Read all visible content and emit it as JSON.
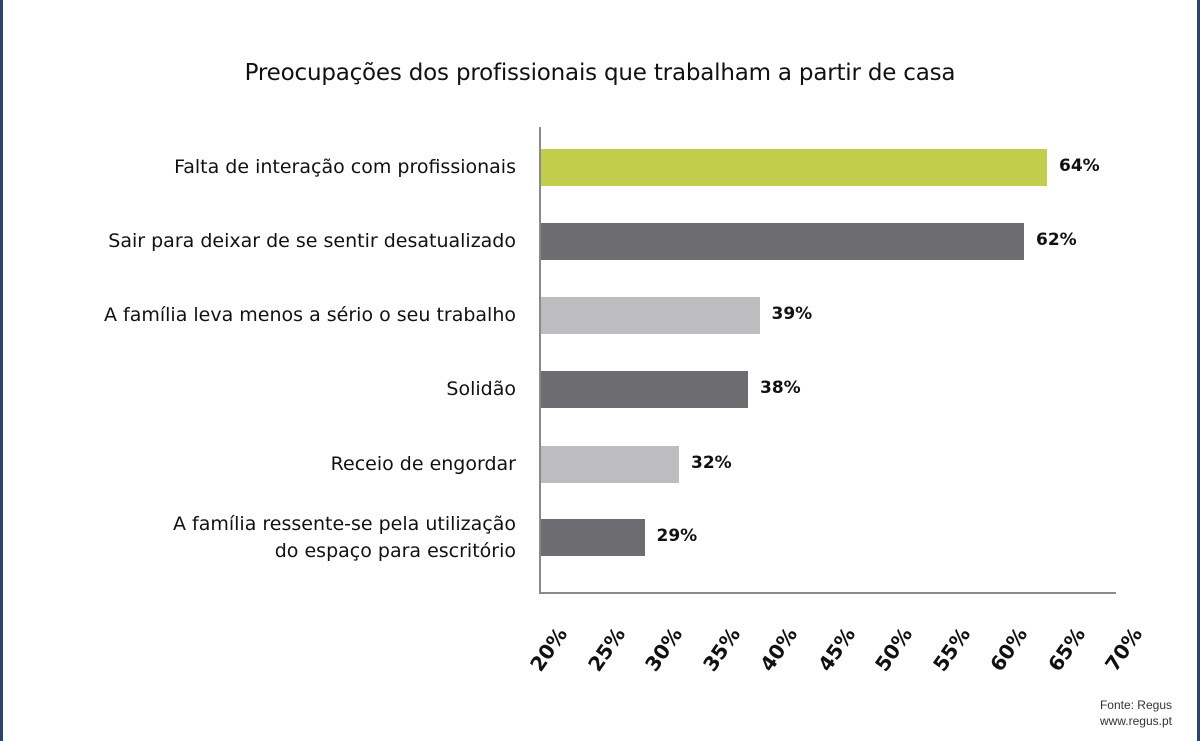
{
  "chart_data": {
    "type": "bar",
    "orientation": "horizontal",
    "title": "Preocupações dos profissionais que trabalham a partir de casa",
    "categories": [
      "Falta de interação com profissionais",
      "Sair para deixar de se sentir desatualizado",
      "A família leva menos a sério o seu trabalho",
      "Solidão",
      "Receio de engordar",
      "A família ressente-se pela utilização\ndo espaço para escritório"
    ],
    "values": [
      64,
      62,
      39,
      38,
      32,
      29
    ],
    "value_labels": [
      "64%",
      "62%",
      "39%",
      "38%",
      "32%",
      "29%"
    ],
    "bar_colors": [
      "#c3cd4c",
      "#6d6c70",
      "#bdbdbf",
      "#6d6c70",
      "#bdbdbf",
      "#6d6c70"
    ],
    "xlabel": "",
    "ylabel": "",
    "xlim": [
      20,
      70
    ],
    "x_ticks": [
      "20%",
      "25%",
      "30%",
      "35%",
      "40%",
      "45%",
      "50%",
      "55%",
      "60%",
      "65%",
      "70%"
    ],
    "grid": false,
    "legend": null
  },
  "source": {
    "line1": "Fonte: Regus",
    "line2": "www.regus.pt"
  }
}
